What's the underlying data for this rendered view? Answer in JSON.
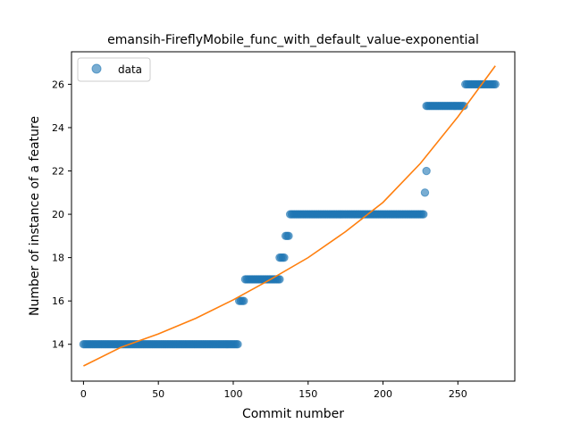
{
  "chart_data": {
    "type": "scatter",
    "title": "emansih-FireflyMobile_func_with_default_value-exponential",
    "xlabel": "Commit number",
    "ylabel": "Number of instance of a feature",
    "xlim": [
      -8,
      288
    ],
    "ylim": [
      12.3,
      27.5
    ],
    "xticks": [
      0,
      50,
      100,
      150,
      200,
      250
    ],
    "yticks": [
      14,
      16,
      18,
      20,
      22,
      24,
      26
    ],
    "legend": {
      "position": "top-left",
      "entries": [
        "data"
      ]
    },
    "colors": {
      "data": "#1f77b4",
      "fit": "#ff7f0e"
    },
    "series": [
      {
        "name": "data",
        "kind": "points",
        "runs": [
          {
            "x_start": 0,
            "x_end": 103,
            "y": 14
          },
          {
            "x_start": 104,
            "x_end": 107,
            "y": 16
          },
          {
            "x_start": 108,
            "x_end": 131,
            "y": 17
          },
          {
            "x_start": 131,
            "x_end": 134,
            "y": 18
          },
          {
            "x_start": 135,
            "x_end": 137,
            "y": 19
          },
          {
            "x_start": 138,
            "x_end": 227,
            "y": 20
          },
          {
            "x_start": 228,
            "x_end": 228,
            "y": 21
          },
          {
            "x_start": 229,
            "x_end": 229,
            "y": 22
          },
          {
            "x_start": 229,
            "x_end": 254,
            "y": 25
          },
          {
            "x_start": 255,
            "x_end": 275,
            "y": 26
          }
        ]
      },
      {
        "name": "",
        "kind": "fit-line",
        "x": [
          0,
          25,
          50,
          75,
          100,
          125,
          150,
          175,
          200,
          225,
          250,
          275
        ],
        "y": [
          13.0,
          13.86,
          14.48,
          15.2,
          16.05,
          17.0,
          18.0,
          19.2,
          20.55,
          22.35,
          24.5,
          26.85
        ]
      }
    ]
  }
}
